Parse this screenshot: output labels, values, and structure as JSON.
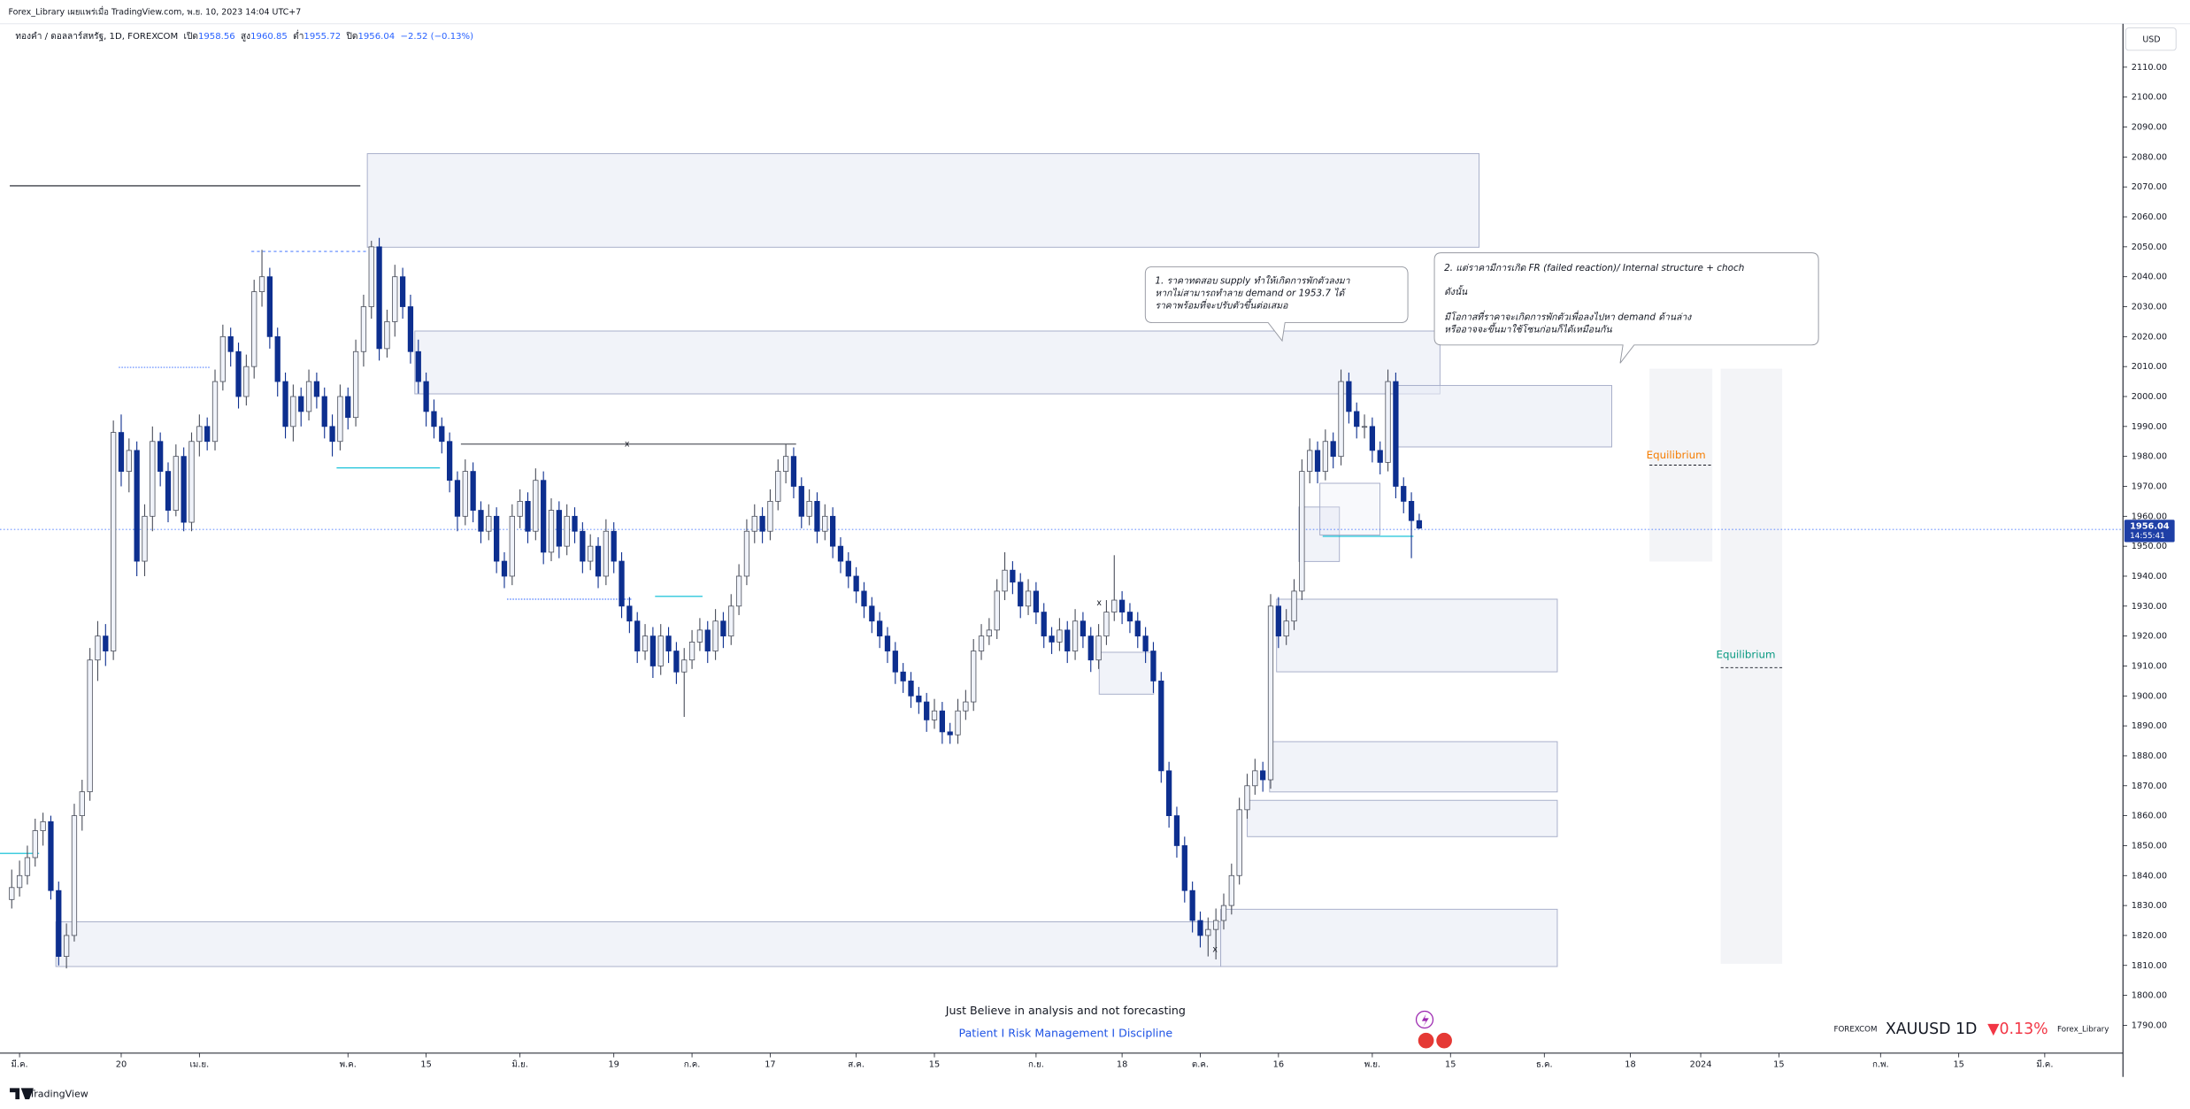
{
  "publisher": "Forex_Library เผยแพร่เมื่อ TradingView.com, พ.ย. 10, 2023 14:04 UTC+7",
  "legend": {
    "symbol": "ทองคำ / ดอลลาร์สหรัฐ, 1D, FOREXCOM",
    "open_label": "เปิด",
    "open": "1958.56",
    "high_label": "สูง",
    "high": "1960.85",
    "low_label": "ต่ำ",
    "low": "1955.72",
    "close_label": "ปิด",
    "close": "1956.04",
    "change": "−2.52 (−0.13%)"
  },
  "currency": "USD",
  "countdown": "14:55:41",
  "annotations": {
    "note1": [
      "1. ราคาทดสอบ supply ทำให้เกิดการพักตัวลงมา",
      "หากไม่สามารถทำลาย demand or 1953.7 ได้",
      "ราคาพร้อมที่จะปรับตัวขึ้นต่อเสมอ"
    ],
    "note2": [
      "2. แต่ราคามีการเกิด FR (failed reaction)/ Internal structure + choch",
      "ดังนั้น",
      "มีโอกาสที่ราคาจะเกิดการพักตัวเพื่อลงไปหา demand ด้านล่าง",
      "หรืออาจจะขึ้นมาใช้โซนก่อนก็ได้เหมือนกัน"
    ],
    "equilibrium_1": "Equilibrium",
    "equilibrium_2": "Equilibrium",
    "break_marks": [
      "x",
      "x",
      "x"
    ]
  },
  "footer": {
    "line1": "Just Believe in analysis and not forecasting",
    "line2": "Patient I Risk Management I Discipline",
    "exchange": "FOREXCOM",
    "ticker": "XAUUSD 1D",
    "change": "▼0.13%",
    "author": "Forex_Library",
    "logo": "TradingView"
  },
  "chart_data": {
    "type": "candlestick",
    "up_color": "#f0f3fa",
    "down_color": "#0d2f8f",
    "wick_color": "#4a4e5a",
    "grid": false,
    "xlim": [
      -1.5,
      270
    ],
    "ylim": [
      1780.7,
      2124.5
    ],
    "xticks": [
      {
        "value": 1,
        "label": "มี.ค."
      },
      {
        "value": 14,
        "label": "20"
      },
      {
        "value": 24,
        "label": "เม.ย."
      },
      {
        "value": 43,
        "label": "พ.ค."
      },
      {
        "value": 53,
        "label": "15"
      },
      {
        "value": 65,
        "label": "มิ.ย."
      },
      {
        "value": 77,
        "label": "19"
      },
      {
        "value": 87,
        "label": "ก.ค."
      },
      {
        "value": 97,
        "label": "17"
      },
      {
        "value": 108,
        "label": "ส.ค."
      },
      {
        "value": 118,
        "label": "15"
      },
      {
        "value": 131,
        "label": "ก.ย."
      },
      {
        "value": 142,
        "label": "18"
      },
      {
        "value": 152,
        "label": "ต.ค."
      },
      {
        "value": 162,
        "label": "16"
      },
      {
        "value": 174,
        "label": "พ.ย."
      },
      {
        "value": 184,
        "label": "15"
      },
      {
        "value": 196,
        "label": "ธ.ค."
      },
      {
        "value": 207,
        "label": "18"
      },
      {
        "value": 216,
        "label": "2024"
      },
      {
        "value": 226,
        "label": "15"
      },
      {
        "value": 239,
        "label": "ก.พ."
      },
      {
        "value": 249,
        "label": "15"
      },
      {
        "value": 260,
        "label": "มี.ค."
      }
    ],
    "yticks": [
      {
        "value": 2110,
        "label": "2110.00"
      },
      {
        "value": 2100,
        "label": "2100.00"
      },
      {
        "value": 2090,
        "label": "2090.00"
      },
      {
        "value": 2080,
        "label": "2080.00"
      },
      {
        "value": 2070,
        "label": "2070.00"
      },
      {
        "value": 2060,
        "label": "2060.00"
      },
      {
        "value": 2050,
        "label": "2050.00"
      },
      {
        "value": 2040,
        "label": "2040.00"
      },
      {
        "value": 2030,
        "label": "2030.00"
      },
      {
        "value": 2020,
        "label": "2020.00"
      },
      {
        "value": 2010,
        "label": "2010.00"
      },
      {
        "value": 2000,
        "label": "2000.00"
      },
      {
        "value": 1990,
        "label": "1990.00"
      },
      {
        "value": 1980,
        "label": "1980.00"
      },
      {
        "value": 1970,
        "label": "1970.00"
      },
      {
        "value": 1960,
        "label": "1960.00"
      },
      {
        "value": 1950,
        "label": "1950.00"
      },
      {
        "value": 1940,
        "label": "1940.00"
      },
      {
        "value": 1930,
        "label": "1930.00"
      },
      {
        "value": 1920,
        "label": "1920.00"
      },
      {
        "value": 1910,
        "label": "1910.00"
      },
      {
        "value": 1900,
        "label": "1900.00"
      },
      {
        "value": 1890,
        "label": "1890.00"
      },
      {
        "value": 1880,
        "label": "1880.00"
      },
      {
        "value": 1870,
        "label": "1870.00"
      },
      {
        "value": 1860,
        "label": "1860.00"
      },
      {
        "value": 1850,
        "label": "1850.00"
      },
      {
        "value": 1840,
        "label": "1840.00"
      },
      {
        "value": 1830,
        "label": "1830.00"
      },
      {
        "value": 1820,
        "label": "1820.00"
      },
      {
        "value": 1810,
        "label": "1810.00"
      },
      {
        "value": 1800,
        "label": "1800.00"
      },
      {
        "value": 1790,
        "label": "1790.00"
      }
    ],
    "last_price": 1956.04,
    "ohlc": [
      [
        1832,
        1842,
        1829,
        1836
      ],
      [
        1836,
        1845,
        1833,
        1840
      ],
      [
        1840,
        1850,
        1837,
        1846
      ],
      [
        1846,
        1859,
        1843,
        1855
      ],
      [
        1855,
        1861,
        1850,
        1858
      ],
      [
        1858,
        1860,
        1832,
        1835
      ],
      [
        1835,
        1838,
        1810,
        1813
      ],
      [
        1813,
        1824,
        1809,
        1820
      ],
      [
        1820,
        1864,
        1818,
        1860
      ],
      [
        1860,
        1872,
        1855,
        1868
      ],
      [
        1868,
        1916,
        1865,
        1912
      ],
      [
        1912,
        1925,
        1905,
        1920
      ],
      [
        1920,
        1924,
        1910,
        1915
      ],
      [
        1915,
        1992,
        1912,
        1988
      ],
      [
        1988,
        1994,
        1970,
        1975
      ],
      [
        1975,
        1986,
        1968,
        1982
      ],
      [
        1982,
        1985,
        1940,
        1945
      ],
      [
        1945,
        1964,
        1940,
        1960
      ],
      [
        1960,
        1990,
        1955,
        1985
      ],
      [
        1985,
        1988,
        1970,
        1975
      ],
      [
        1975,
        1978,
        1958,
        1962
      ],
      [
        1962,
        1984,
        1960,
        1980
      ],
      [
        1980,
        1983,
        1955,
        1958
      ],
      [
        1958,
        1988,
        1955,
        1985
      ],
      [
        1985,
        1994,
        1980,
        1990
      ],
      [
        1990,
        1993,
        1982,
        1985
      ],
      [
        1985,
        2009,
        1982,
        2005
      ],
      [
        2005,
        2024,
        2002,
        2020
      ],
      [
        2020,
        2023,
        2010,
        2015
      ],
      [
        2015,
        2018,
        1996,
        2000
      ],
      [
        2000,
        2014,
        1997,
        2010
      ],
      [
        2010,
        2039,
        2006,
        2035
      ],
      [
        2035,
        2049,
        2030,
        2040
      ],
      [
        2040,
        2043,
        2016,
        2020
      ],
      [
        2020,
        2023,
        2000,
        2005
      ],
      [
        2005,
        2008,
        1986,
        1990
      ],
      [
        1990,
        2004,
        1985,
        2000
      ],
      [
        2000,
        2003,
        1990,
        1995
      ],
      [
        1995,
        2009,
        1992,
        2005
      ],
      [
        2005,
        2008,
        1996,
        2000
      ],
      [
        2000,
        2003,
        1986,
        1990
      ],
      [
        1990,
        1994,
        1980,
        1985
      ],
      [
        1985,
        2004,
        1982,
        2000
      ],
      [
        2000,
        2003,
        1989,
        1993
      ],
      [
        1993,
        2019,
        1990,
        2015
      ],
      [
        2015,
        2034,
        2010,
        2030
      ],
      [
        2030,
        2052,
        2026,
        2050
      ],
      [
        2050,
        2053,
        2012,
        2016
      ],
      [
        2016,
        2029,
        2013,
        2025
      ],
      [
        2025,
        2044,
        2020,
        2040
      ],
      [
        2040,
        2043,
        2026,
        2030
      ],
      [
        2030,
        2034,
        2011,
        2015
      ],
      [
        2015,
        2019,
        2001,
        2005
      ],
      [
        2005,
        2008,
        1990,
        1995
      ],
      [
        1995,
        1999,
        1986,
        1990
      ],
      [
        1990,
        1993,
        1981,
        1985
      ],
      [
        1985,
        1988,
        1968,
        1972
      ],
      [
        1972,
        1975,
        1955,
        1960
      ],
      [
        1960,
        1979,
        1957,
        1975
      ],
      [
        1975,
        1978,
        1958,
        1962
      ],
      [
        1962,
        1965,
        1951,
        1955
      ],
      [
        1955,
        1964,
        1952,
        1960
      ],
      [
        1960,
        1963,
        1941,
        1945
      ],
      [
        1945,
        1948,
        1936,
        1940
      ],
      [
        1940,
        1964,
        1937,
        1960
      ],
      [
        1960,
        1969,
        1956,
        1965
      ],
      [
        1965,
        1968,
        1951,
        1955
      ],
      [
        1955,
        1976,
        1952,
        1972
      ],
      [
        1972,
        1975,
        1944,
        1948
      ],
      [
        1948,
        1966,
        1945,
        1962
      ],
      [
        1962,
        1965,
        1946,
        1950
      ],
      [
        1950,
        1964,
        1947,
        1960
      ],
      [
        1960,
        1963,
        1951,
        1955
      ],
      [
        1955,
        1958,
        1941,
        1945
      ],
      [
        1945,
        1954,
        1942,
        1950
      ],
      [
        1950,
        1953,
        1936,
        1940
      ],
      [
        1940,
        1959,
        1937,
        1955
      ],
      [
        1955,
        1958,
        1941,
        1945
      ],
      [
        1945,
        1948,
        1926,
        1930
      ],
      [
        1930,
        1933,
        1921,
        1925
      ],
      [
        1925,
        1928,
        1911,
        1915
      ],
      [
        1915,
        1924,
        1912,
        1920
      ],
      [
        1920,
        1923,
        1906,
        1910
      ],
      [
        1910,
        1924,
        1907,
        1920
      ],
      [
        1920,
        1923,
        1911,
        1915
      ],
      [
        1915,
        1918,
        1904,
        1908
      ],
      [
        1908,
        1916,
        1893,
        1912
      ],
      [
        1912,
        1922,
        1909,
        1918
      ],
      [
        1918,
        1926,
        1915,
        1922
      ],
      [
        1922,
        1925,
        1911,
        1915
      ],
      [
        1915,
        1929,
        1912,
        1925
      ],
      [
        1925,
        1928,
        1916,
        1920
      ],
      [
        1920,
        1934,
        1917,
        1930
      ],
      [
        1930,
        1944,
        1927,
        1940
      ],
      [
        1940,
        1959,
        1937,
        1955
      ],
      [
        1955,
        1964,
        1951,
        1960
      ],
      [
        1960,
        1963,
        1951,
        1955
      ],
      [
        1955,
        1969,
        1952,
        1965
      ],
      [
        1965,
        1979,
        1962,
        1975
      ],
      [
        1975,
        1984,
        1971,
        1980
      ],
      [
        1980,
        1983,
        1966,
        1970
      ],
      [
        1970,
        1973,
        1956,
        1960
      ],
      [
        1960,
        1969,
        1957,
        1965
      ],
      [
        1965,
        1968,
        1951,
        1955
      ],
      [
        1955,
        1964,
        1952,
        1960
      ],
      [
        1960,
        1963,
        1946,
        1950
      ],
      [
        1950,
        1953,
        1941,
        1945
      ],
      [
        1945,
        1948,
        1936,
        1940
      ],
      [
        1940,
        1943,
        1931,
        1935
      ],
      [
        1935,
        1938,
        1926,
        1930
      ],
      [
        1930,
        1933,
        1921,
        1925
      ],
      [
        1925,
        1928,
        1916,
        1920
      ],
      [
        1920,
        1923,
        1911,
        1915
      ],
      [
        1915,
        1918,
        1904,
        1908
      ],
      [
        1908,
        1911,
        1901,
        1905
      ],
      [
        1905,
        1908,
        1896,
        1900
      ],
      [
        1900,
        1903,
        1894,
        1898
      ],
      [
        1898,
        1901,
        1888,
        1892
      ],
      [
        1892,
        1899,
        1889,
        1895
      ],
      [
        1895,
        1898,
        1884,
        1888
      ],
      [
        1888,
        1891,
        1884,
        1887
      ],
      [
        1887,
        1899,
        1884,
        1895
      ],
      [
        1895,
        1902,
        1892,
        1898
      ],
      [
        1898,
        1919,
        1895,
        1915
      ],
      [
        1915,
        1924,
        1912,
        1920
      ],
      [
        1920,
        1926,
        1917,
        1922
      ],
      [
        1922,
        1939,
        1919,
        1935
      ],
      [
        1935,
        1948,
        1932,
        1942
      ],
      [
        1942,
        1945,
        1934,
        1938
      ],
      [
        1938,
        1941,
        1926,
        1930
      ],
      [
        1930,
        1939,
        1927,
        1935
      ],
      [
        1935,
        1938,
        1924,
        1928
      ],
      [
        1928,
        1931,
        1916,
        1920
      ],
      [
        1920,
        1923,
        1914,
        1918
      ],
      [
        1918,
        1926,
        1915,
        1922
      ],
      [
        1922,
        1925,
        1911,
        1915
      ],
      [
        1915,
        1929,
        1912,
        1925
      ],
      [
        1925,
        1928,
        1916,
        1920
      ],
      [
        1920,
        1923,
        1908,
        1912
      ],
      [
        1912,
        1924,
        1909,
        1920
      ],
      [
        1920,
        1932,
        1917,
        1928
      ],
      [
        1928,
        1947,
        1925,
        1932
      ],
      [
        1932,
        1935,
        1924,
        1928
      ],
      [
        1928,
        1931,
        1921,
        1925
      ],
      [
        1925,
        1928,
        1916,
        1920
      ],
      [
        1920,
        1923,
        1911,
        1915
      ],
      [
        1915,
        1918,
        1901,
        1905
      ],
      [
        1905,
        1908,
        1871,
        1875
      ],
      [
        1875,
        1878,
        1856,
        1860
      ],
      [
        1860,
        1863,
        1846,
        1850
      ],
      [
        1850,
        1853,
        1831,
        1835
      ],
      [
        1835,
        1838,
        1821,
        1825
      ],
      [
        1825,
        1828,
        1816,
        1820
      ],
      [
        1820,
        1826,
        1813,
        1822
      ],
      [
        1822,
        1829,
        1812,
        1825
      ],
      [
        1825,
        1834,
        1822,
        1830
      ],
      [
        1830,
        1844,
        1827,
        1840
      ],
      [
        1840,
        1866,
        1837,
        1862
      ],
      [
        1862,
        1874,
        1859,
        1870
      ],
      [
        1870,
        1879,
        1867,
        1875
      ],
      [
        1875,
        1878,
        1868,
        1872
      ],
      [
        1872,
        1934,
        1869,
        1930
      ],
      [
        1930,
        1933,
        1916,
        1920
      ],
      [
        1920,
        1929,
        1917,
        1925
      ],
      [
        1925,
        1939,
        1922,
        1935
      ],
      [
        1935,
        1979,
        1932,
        1975
      ],
      [
        1975,
        1986,
        1971,
        1982
      ],
      [
        1982,
        1985,
        1971,
        1975
      ],
      [
        1975,
        1989,
        1972,
        1985
      ],
      [
        1985,
        1988,
        1976,
        1980
      ],
      [
        1980,
        2009,
        1977,
        2005
      ],
      [
        2005,
        2008,
        1991,
        1995
      ],
      [
        1995,
        1998,
        1986,
        1990
      ],
      [
        1990,
        1994,
        1986,
        1990
      ],
      [
        1990,
        1993,
        1978,
        1982
      ],
      [
        1982,
        1985,
        1974,
        1978
      ],
      [
        1978,
        2009,
        1975,
        2005
      ],
      [
        2005,
        2008,
        1966,
        1970
      ],
      [
        1970,
        1973,
        1961,
        1965
      ],
      [
        1965,
        1968,
        1946,
        1958.56
      ],
      [
        1958.56,
        1960.85,
        1955.72,
        1956.04
      ]
    ]
  }
}
